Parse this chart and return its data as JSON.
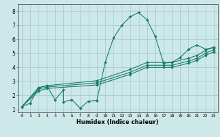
{
  "title": "",
  "xlabel": "Humidex (Indice chaleur)",
  "background_color": "#cce8e8",
  "grid_color": "#aacccc",
  "line_color": "#1a7a6e",
  "xlim": [
    -0.5,
    23.5
  ],
  "ylim": [
    0.8,
    8.5
  ],
  "lines": [
    {
      "x": [
        0,
        1,
        2,
        3,
        4,
        5,
        5,
        6,
        7,
        8,
        9,
        10,
        11,
        12,
        13,
        14,
        15,
        16,
        17,
        18,
        19,
        20,
        21,
        22,
        23
      ],
      "y": [
        1.2,
        1.45,
        2.55,
        2.7,
        1.7,
        2.4,
        1.55,
        1.7,
        1.1,
        1.6,
        1.65,
        4.35,
        6.1,
        7.0,
        7.6,
        7.9,
        7.4,
        6.2,
        4.3,
        4.35,
        4.7,
        5.3,
        5.6,
        5.3,
        5.4
      ]
    },
    {
      "x": [
        0,
        2,
        3,
        9,
        13,
        15,
        17,
        18,
        20,
        21,
        22,
        23
      ],
      "y": [
        1.2,
        2.55,
        2.7,
        3.05,
        3.85,
        4.35,
        4.35,
        4.35,
        4.65,
        4.85,
        5.2,
        5.45
      ]
    },
    {
      "x": [
        0,
        2,
        3,
        9,
        13,
        15,
        17,
        18,
        20,
        21,
        22,
        23
      ],
      "y": [
        1.2,
        2.45,
        2.6,
        2.9,
        3.65,
        4.15,
        4.15,
        4.15,
        4.45,
        4.65,
        5.0,
        5.25
      ]
    },
    {
      "x": [
        0,
        2,
        3,
        9,
        13,
        15,
        17,
        18,
        20,
        21,
        22,
        23
      ],
      "y": [
        1.2,
        2.3,
        2.5,
        2.75,
        3.5,
        4.0,
        4.0,
        4.0,
        4.3,
        4.5,
        4.85,
        5.1
      ]
    }
  ],
  "yticks": [
    1,
    2,
    3,
    4,
    5,
    6,
    7,
    8
  ],
  "xticks": [
    0,
    1,
    2,
    3,
    4,
    5,
    6,
    7,
    8,
    9,
    10,
    11,
    12,
    13,
    14,
    15,
    16,
    17,
    18,
    19,
    20,
    21,
    22,
    23
  ]
}
